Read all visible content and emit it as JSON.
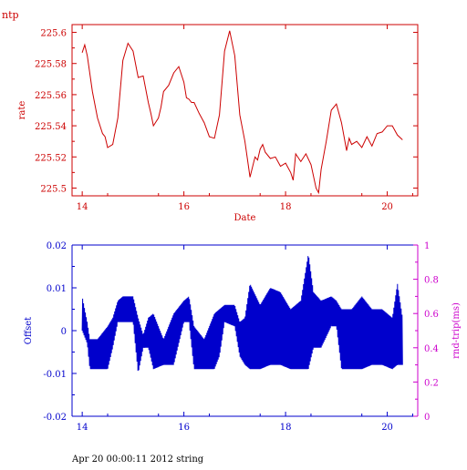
{
  "page_title": "ntp",
  "footer": "Apr 20 00:00:11 2012 string",
  "colors": {
    "top": "#cc0000",
    "bottom": "#0000cc",
    "right_axis": "#cc00cc"
  },
  "chart_data": [
    {
      "type": "line",
      "title": "",
      "xlabel": "Date",
      "ylabel": "rate",
      "xlim": [
        13.8,
        20.6
      ],
      "ylim": [
        225.495,
        225.605
      ],
      "xticks": [
        14,
        16,
        18,
        20
      ],
      "yticks": [
        225.5,
        225.52,
        225.54,
        225.56,
        225.58,
        225.6
      ],
      "ytick_labels": [
        "225.5",
        "225.52",
        "225.54",
        "225.56",
        "225.58",
        "225.6"
      ],
      "grid": false,
      "series": [
        {
          "x": [
            14.0,
            14.05,
            14.1,
            14.2,
            14.3,
            14.4,
            14.45,
            14.5,
            14.6,
            14.7,
            14.8,
            14.9,
            15.0,
            15.1,
            15.2,
            15.3,
            15.35,
            15.4,
            15.5,
            15.55,
            15.6,
            15.7,
            15.8,
            15.9,
            16.0,
            16.05,
            16.1,
            16.15,
            16.2,
            16.3,
            16.4,
            16.5,
            16.6,
            16.7,
            16.8,
            16.9,
            17.0,
            17.1,
            17.2,
            17.3,
            17.4,
            17.45,
            17.5,
            17.55,
            17.6,
            17.7,
            17.8,
            17.9,
            18.0,
            18.1,
            18.15,
            18.2,
            18.3,
            18.4,
            18.5,
            18.6,
            18.65,
            18.7,
            18.8,
            18.9,
            19.0,
            19.1,
            19.2,
            19.25,
            19.3,
            19.4,
            19.5,
            19.6,
            19.7,
            19.8,
            19.9,
            20.0,
            20.1,
            20.2,
            20.3
          ],
          "y": [
            225.587,
            225.592,
            225.585,
            225.562,
            225.545,
            225.535,
            225.533,
            225.526,
            225.528,
            225.545,
            225.582,
            225.593,
            225.588,
            225.571,
            225.572,
            225.555,
            225.548,
            225.54,
            225.545,
            225.552,
            225.562,
            225.566,
            225.574,
            225.578,
            225.568,
            225.558,
            225.557,
            225.555,
            225.555,
            225.548,
            225.542,
            225.533,
            225.532,
            225.547,
            225.588,
            225.601,
            225.585,
            225.547,
            225.53,
            225.507,
            225.52,
            225.518,
            225.525,
            225.528,
            225.523,
            225.519,
            225.52,
            225.514,
            225.516,
            225.51,
            225.505,
            225.522,
            225.517,
            225.522,
            225.515,
            225.5,
            225.497,
            225.512,
            225.53,
            225.55,
            225.554,
            225.542,
            225.524,
            225.532,
            225.528,
            225.53,
            225.526,
            225.533,
            225.527,
            225.535,
            225.536,
            225.54,
            225.54,
            225.534,
            225.531
          ],
          "color": "#cc0000"
        }
      ]
    },
    {
      "type": "line",
      "title": "",
      "xlabel": "",
      "ylabel": "Offset",
      "y2label": "rnd-trip(ms)",
      "xlim": [
        13.8,
        20.6
      ],
      "ylim": [
        -0.02,
        0.02
      ],
      "y2lim": [
        0,
        1
      ],
      "xticks": [
        14,
        16,
        18,
        20
      ],
      "yticks": [
        -0.02,
        -0.01,
        0,
        0.01,
        0.02
      ],
      "ytick_labels": [
        "-0.02",
        "-0.01",
        "0",
        "0.01",
        "0.02"
      ],
      "y2ticks": [
        0,
        0.2,
        0.4,
        0.6,
        0.8,
        1
      ],
      "y2tick_labels": [
        "0",
        "0.2",
        "0.4",
        "0.6",
        "0.8",
        "1"
      ],
      "grid": false,
      "series": [
        {
          "x": [
            14.0,
            14.1,
            14.15,
            14.3,
            14.5,
            14.6,
            14.7,
            14.8,
            15.0,
            15.1,
            15.2,
            15.3,
            15.4,
            15.6,
            15.8,
            16.0,
            16.1,
            16.2,
            16.4,
            16.6,
            16.7,
            16.8,
            17.0,
            17.1,
            17.2,
            17.3,
            17.5,
            17.7,
            17.9,
            18.1,
            18.3,
            18.45,
            18.55,
            18.7,
            18.9,
            19.0,
            19.1,
            19.3,
            19.5,
            19.7,
            19.9,
            20.1,
            20.2,
            20.3
          ],
          "low": [
            0.0,
            -0.003,
            -0.009,
            -0.009,
            -0.009,
            -0.004,
            0.002,
            0.002,
            0.002,
            -0.01,
            -0.004,
            -0.004,
            -0.009,
            -0.008,
            -0.008,
            0.002,
            0.002,
            -0.009,
            -0.009,
            -0.009,
            -0.006,
            0.002,
            0.001,
            -0.006,
            -0.008,
            -0.009,
            -0.009,
            -0.008,
            -0.008,
            -0.009,
            -0.009,
            -0.009,
            -0.004,
            -0.004,
            0.001,
            0.001,
            -0.009,
            -0.009,
            -0.009,
            -0.008,
            -0.008,
            -0.009,
            -0.008,
            -0.008
          ],
          "high": [
            0.008,
            0.002,
            -0.002,
            -0.002,
            0.001,
            0.003,
            0.007,
            0.008,
            0.008,
            0.003,
            -0.001,
            0.003,
            0.004,
            -0.002,
            0.004,
            0.007,
            0.008,
            0.001,
            -0.002,
            0.004,
            0.005,
            0.006,
            0.006,
            0.002,
            0.003,
            0.011,
            0.006,
            0.01,
            0.009,
            0.005,
            0.007,
            0.018,
            0.009,
            0.007,
            0.008,
            0.007,
            0.005,
            0.005,
            0.008,
            0.005,
            0.005,
            0.003,
            0.011,
            0.003
          ],
          "color": "#0000cc"
        }
      ]
    }
  ]
}
